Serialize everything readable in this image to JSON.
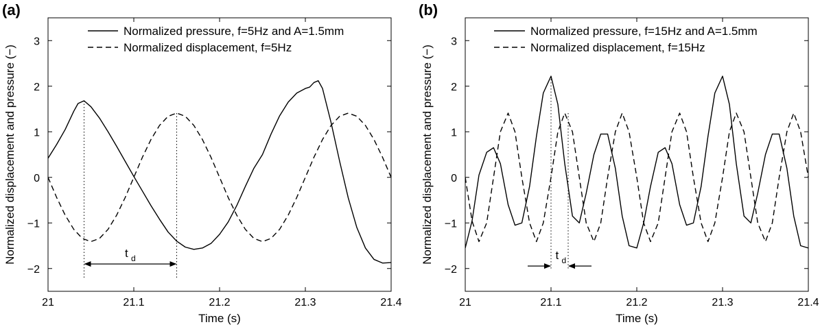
{
  "chart_data": [
    {
      "panel_label": "(a)",
      "type": "line",
      "xlabel": "Time (s)",
      "ylabel": "Normalized displacement and pressure (−)",
      "xlim": [
        21,
        21.4
      ],
      "ylim": [
        -2.5,
        3.5
      ],
      "xticks": [
        21,
        21.1,
        21.2,
        21.3,
        21.4
      ],
      "xtick_labels": [
        "21",
        "21.1",
        "21.2",
        "21.3",
        "21.4"
      ],
      "yticks": [
        -2,
        -1,
        0,
        1,
        2,
        3
      ],
      "ytick_labels": [
        "−2",
        "−1",
        "0",
        "1",
        "2",
        "3"
      ],
      "grid": false,
      "legend_position": "top-right",
      "series": [
        {
          "name": "Normalized pressure, f=5Hz and A=1.5mm",
          "style": "solid",
          "x": [
            21.0,
            21.01,
            21.02,
            21.03,
            21.035,
            21.042,
            21.05,
            21.06,
            21.07,
            21.08,
            21.09,
            21.1,
            21.11,
            21.12,
            21.13,
            21.14,
            21.15,
            21.16,
            21.17,
            21.18,
            21.19,
            21.2,
            21.21,
            21.22,
            21.23,
            21.24,
            21.25,
            21.26,
            21.27,
            21.28,
            21.29,
            21.3,
            21.305,
            21.31,
            21.315,
            21.32,
            21.33,
            21.34,
            21.35,
            21.36,
            21.37,
            21.38,
            21.39,
            21.4
          ],
          "y": [
            0.42,
            0.72,
            1.05,
            1.45,
            1.62,
            1.68,
            1.55,
            1.3,
            1.0,
            0.68,
            0.35,
            0.02,
            -0.3,
            -0.62,
            -0.92,
            -1.2,
            -1.4,
            -1.53,
            -1.58,
            -1.55,
            -1.45,
            -1.25,
            -0.98,
            -0.62,
            -0.2,
            0.2,
            0.5,
            0.95,
            1.35,
            1.65,
            1.85,
            1.95,
            1.98,
            2.08,
            2.12,
            1.95,
            1.2,
            0.35,
            -0.45,
            -1.1,
            -1.55,
            -1.8,
            -1.88,
            -1.87
          ]
        },
        {
          "name": "Normalized displacement, f=5Hz",
          "style": "dashed",
          "x": [
            21.0,
            21.01,
            21.02,
            21.03,
            21.04,
            21.05,
            21.06,
            21.07,
            21.08,
            21.09,
            21.1,
            21.11,
            21.12,
            21.13,
            21.14,
            21.15,
            21.16,
            21.17,
            21.18,
            21.19,
            21.2,
            21.21,
            21.22,
            21.23,
            21.24,
            21.25,
            21.26,
            21.27,
            21.28,
            21.29,
            21.3,
            21.31,
            21.32,
            21.33,
            21.34,
            21.35,
            21.36,
            21.37,
            21.38,
            21.39,
            21.4
          ],
          "y": [
            0.0,
            -0.44,
            -0.83,
            -1.14,
            -1.34,
            -1.41,
            -1.34,
            -1.14,
            -0.83,
            -0.44,
            0.0,
            0.44,
            0.83,
            1.14,
            1.34,
            1.41,
            1.34,
            1.14,
            0.83,
            0.44,
            0.0,
            -0.44,
            -0.83,
            -1.14,
            -1.34,
            -1.41,
            -1.34,
            -1.14,
            -0.83,
            -0.44,
            0.0,
            0.44,
            0.83,
            1.14,
            1.34,
            1.41,
            1.34,
            1.14,
            0.83,
            0.44,
            0.0
          ]
        }
      ],
      "annotations": [
        {
          "type": "vline_dotted",
          "x": 21.042,
          "y_from": -2.2,
          "y_to": 1.68
        },
        {
          "type": "vline_dotted",
          "x": 21.15,
          "y_from": -2.2,
          "y_to": 1.41
        },
        {
          "type": "double_arrow",
          "x1": 21.042,
          "x2": 21.15,
          "y": -1.9,
          "label": "t",
          "label_sub": "d"
        }
      ]
    },
    {
      "panel_label": "(b)",
      "type": "line",
      "xlabel": "Time (s)",
      "ylabel": "Normalized displacement and pressure (−)",
      "xlim": [
        21,
        21.4
      ],
      "ylim": [
        -2.5,
        3.5
      ],
      "xticks": [
        21,
        21.1,
        21.2,
        21.3,
        21.4
      ],
      "xtick_labels": [
        "21",
        "21.1",
        "21.2",
        "21.3",
        "21.4"
      ],
      "yticks": [
        -2,
        -1,
        0,
        1,
        2,
        3
      ],
      "ytick_labels": [
        "−2",
        "−1",
        "0",
        "1",
        "2",
        "3"
      ],
      "grid": false,
      "legend_position": "top-right",
      "series": [
        {
          "name": "Normalized pressure, f=15Hz and A=1.5mm",
          "style": "solid",
          "x": [
            21.0,
            21.008,
            21.016,
            21.025,
            21.033,
            21.041,
            21.05,
            21.058,
            21.066,
            21.075,
            21.083,
            21.091,
            21.1,
            21.108,
            21.116,
            21.125,
            21.133,
            21.141,
            21.15,
            21.158,
            21.166,
            21.175,
            21.183,
            21.191,
            21.2,
            21.208,
            21.216,
            21.225,
            21.233,
            21.241,
            21.25,
            21.258,
            21.266,
            21.275,
            21.283,
            21.291,
            21.3,
            21.308,
            21.316,
            21.325,
            21.333,
            21.341,
            21.35,
            21.358,
            21.366,
            21.375,
            21.383,
            21.391,
            21.4
          ],
          "y": [
            -1.55,
            -0.95,
            0.05,
            0.55,
            0.65,
            0.3,
            -0.6,
            -1.05,
            -1.0,
            -0.2,
            0.9,
            1.85,
            2.22,
            1.6,
            0.3,
            -0.85,
            -1.0,
            -0.35,
            0.5,
            0.95,
            0.95,
            0.2,
            -0.85,
            -1.5,
            -1.55,
            -1.0,
            -0.2,
            0.55,
            0.65,
            0.3,
            -0.6,
            -1.05,
            -1.0,
            -0.2,
            0.9,
            1.85,
            2.22,
            1.6,
            0.3,
            -0.85,
            -1.0,
            -0.35,
            0.5,
            0.95,
            0.95,
            0.2,
            -0.85,
            -1.5,
            -1.55
          ]
        },
        {
          "name": "Normalized displacement, f=15Hz",
          "style": "dashed",
          "x": [
            21.0,
            21.008,
            21.016,
            21.025,
            21.033,
            21.041,
            21.05,
            21.058,
            21.066,
            21.075,
            21.083,
            21.091,
            21.1,
            21.108,
            21.116,
            21.125,
            21.133,
            21.141,
            21.15,
            21.158,
            21.166,
            21.175,
            21.183,
            21.191,
            21.2,
            21.208,
            21.216,
            21.225,
            21.233,
            21.241,
            21.25,
            21.258,
            21.266,
            21.275,
            21.283,
            21.291,
            21.3,
            21.308,
            21.316,
            21.325,
            21.333,
            21.341,
            21.35,
            21.358,
            21.366,
            21.375,
            21.383,
            21.391,
            21.4
          ],
          "y": [
            0.0,
            -0.96,
            -1.41,
            -1.0,
            0.0,
            1.0,
            1.41,
            1.0,
            0.0,
            -1.0,
            -1.41,
            -1.0,
            0.0,
            1.0,
            1.41,
            1.0,
            0.0,
            -1.0,
            -1.41,
            -1.0,
            0.0,
            1.0,
            1.41,
            1.0,
            0.0,
            -1.0,
            -1.41,
            -1.0,
            0.0,
            1.0,
            1.41,
            1.0,
            0.0,
            -1.0,
            -1.41,
            -1.0,
            0.0,
            1.0,
            1.41,
            1.0,
            0.0,
            -1.0,
            -1.41,
            -1.0,
            0.0,
            1.0,
            1.41,
            1.0,
            0.0
          ]
        }
      ],
      "annotations": [
        {
          "type": "vline_dotted",
          "x": 21.1,
          "y_from": -2.0,
          "y_to": 2.22
        },
        {
          "type": "vline_dotted",
          "x": 21.12,
          "y_from": -2.0,
          "y_to": 1.41
        },
        {
          "type": "inward_arrows",
          "x1": 21.1,
          "x2": 21.12,
          "y": -1.9,
          "label": "t",
          "label_sub": "d"
        }
      ]
    }
  ]
}
